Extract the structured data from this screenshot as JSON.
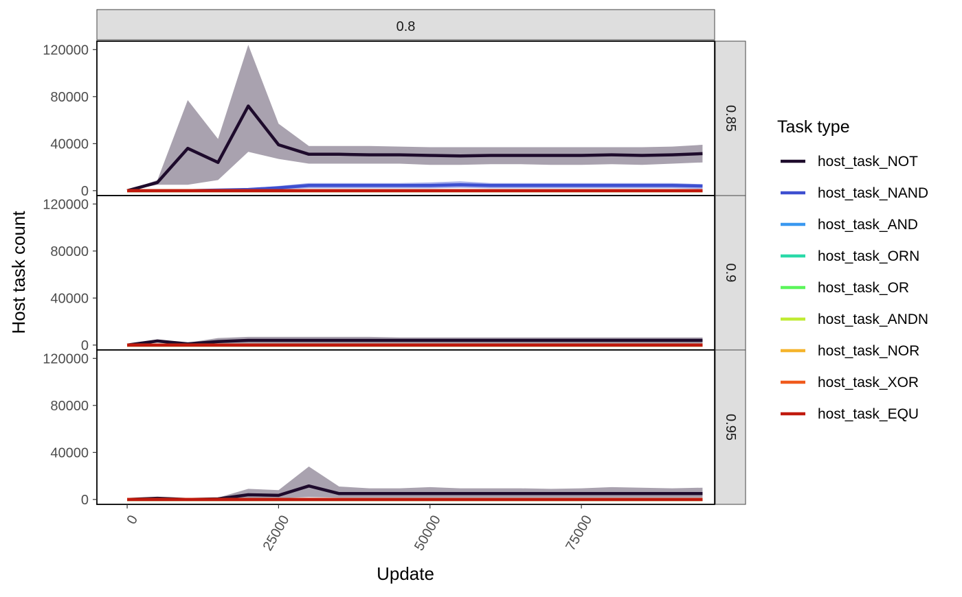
{
  "chart_data": {
    "type": "line",
    "title": "",
    "xlabel": "Update",
    "ylabel": "Host task count",
    "column_strip": "0.8",
    "xlim": [
      -5000,
      97000
    ],
    "ylim": [
      -3000,
      126000
    ],
    "x_ticks": [
      0,
      25000,
      50000,
      75000
    ],
    "x_tick_labels": [
      "0",
      "25000",
      "50000",
      "75000"
    ],
    "y_ticks": [
      0,
      40000,
      80000,
      120000
    ],
    "y_tick_labels": [
      "0",
      "40000",
      "80000",
      "120000"
    ],
    "legend": {
      "title": "Task type",
      "position": "right",
      "items": [
        {
          "name": "host_task_NOT",
          "color": "#1e0b2c"
        },
        {
          "name": "host_task_NAND",
          "color": "#3d4fd0"
        },
        {
          "name": "host_task_AND",
          "color": "#3a98f0"
        },
        {
          "name": "host_task_ORN",
          "color": "#2ad9a8"
        },
        {
          "name": "host_task_OR",
          "color": "#5cf55b"
        },
        {
          "name": "host_task_ANDN",
          "color": "#c0ec34"
        },
        {
          "name": "host_task_NOR",
          "color": "#f5b42c"
        },
        {
          "name": "host_task_XOR",
          "color": "#f05a1c"
        },
        {
          "name": "host_task_EQU",
          "color": "#c01a0e"
        }
      ]
    },
    "x": [
      0,
      5000,
      10000,
      15000,
      20000,
      25000,
      30000,
      35000,
      40000,
      45000,
      50000,
      55000,
      60000,
      65000,
      70000,
      75000,
      80000,
      85000,
      90000,
      95000
    ],
    "panels": [
      {
        "strip": "0.85",
        "series": [
          {
            "name": "host_task_NOT",
            "values": [
              0,
              7000,
              36000,
              24000,
              72000,
              39000,
              31000,
              31000,
              30500,
              30500,
              30000,
              29500,
              30000,
              30000,
              30000,
              30000,
              30500,
              30000,
              30500,
              31500
            ],
            "lower": [
              0,
              5000,
              5000,
              9000,
              33000,
              27000,
              23000,
              23000,
              23000,
              23000,
              22000,
              22000,
              22500,
              22500,
              22000,
              22000,
              22500,
              22000,
              23000,
              24000
            ],
            "upper": [
              0,
              9000,
              77000,
              44000,
              124000,
              57000,
              38000,
              38000,
              38000,
              37500,
              37000,
              37000,
              37000,
              37000,
              37000,
              37000,
              37000,
              37000,
              37500,
              39000
            ]
          },
          {
            "name": "host_task_NAND",
            "values": [
              0,
              0,
              0,
              500,
              1000,
              2500,
              4500,
              4500,
              4500,
              4500,
              4500,
              5000,
              4500,
              4500,
              4500,
              4500,
              4500,
              4500,
              4500,
              4000
            ],
            "lower": [
              0,
              0,
              0,
              0,
              0,
              1000,
              2000,
              2000,
              2000,
              2000,
              2000,
              2500,
              2000,
              2000,
              2000,
              2000,
              2000,
              2000,
              2000,
              1500
            ],
            "upper": [
              0,
              0,
              500,
              1000,
              2000,
              4000,
              6500,
              6500,
              6500,
              6500,
              7000,
              8000,
              6500,
              6500,
              6500,
              6500,
              6500,
              6500,
              6500,
              5500
            ]
          },
          {
            "name": "host_task_AND",
            "values": [
              0,
              0,
              0,
              0,
              0,
              0,
              0,
              0,
              0,
              0,
              0,
              0,
              0,
              0,
              0,
              0,
              0,
              0,
              0,
              0
            ]
          },
          {
            "name": "host_task_ORN",
            "values": [
              0,
              0,
              0,
              0,
              0,
              0,
              0,
              0,
              0,
              0,
              0,
              0,
              0,
              0,
              0,
              0,
              0,
              0,
              0,
              0
            ]
          },
          {
            "name": "host_task_OR",
            "values": [
              0,
              0,
              0,
              0,
              0,
              0,
              0,
              0,
              0,
              0,
              0,
              0,
              0,
              0,
              0,
              0,
              0,
              0,
              0,
              0
            ]
          },
          {
            "name": "host_task_ANDN",
            "values": [
              0,
              0,
              0,
              0,
              0,
              0,
              0,
              0,
              0,
              0,
              0,
              0,
              0,
              0,
              0,
              0,
              0,
              0,
              0,
              0
            ]
          },
          {
            "name": "host_task_NOR",
            "values": [
              0,
              0,
              0,
              0,
              0,
              0,
              0,
              0,
              0,
              0,
              0,
              0,
              0,
              0,
              0,
              0,
              0,
              0,
              0,
              0
            ]
          },
          {
            "name": "host_task_XOR",
            "values": [
              0,
              0,
              0,
              0,
              0,
              0,
              0,
              0,
              0,
              0,
              0,
              0,
              0,
              0,
              0,
              0,
              0,
              0,
              0,
              0
            ]
          },
          {
            "name": "host_task_EQU",
            "values": [
              0,
              0,
              0,
              0,
              0,
              0,
              0,
              0,
              0,
              0,
              0,
              0,
              0,
              0,
              0,
              0,
              0,
              0,
              0,
              0
            ]
          }
        ]
      },
      {
        "strip": "0.9",
        "series": [
          {
            "name": "host_task_NOT",
            "values": [
              0,
              3500,
              1000,
              3000,
              4000,
              4000,
              4000,
              4000,
              4000,
              4000,
              4000,
              4000,
              4000,
              4000,
              4000,
              4000,
              4000,
              4000,
              4000,
              4000
            ],
            "lower": [
              0,
              2000,
              0,
              500,
              1000,
              1000,
              1000,
              1000,
              1000,
              1000,
              1000,
              1000,
              1000,
              1000,
              1000,
              1000,
              1000,
              1000,
              1000,
              1000
            ],
            "upper": [
              0,
              4500,
              2000,
              6000,
              7000,
              7000,
              7000,
              7000,
              7000,
              6500,
              6500,
              6500,
              6500,
              6500,
              6500,
              6500,
              6500,
              6500,
              6500,
              6500
            ]
          },
          {
            "name": "host_task_NAND",
            "values": [
              0,
              0,
              0,
              0,
              0,
              0,
              0,
              0,
              0,
              0,
              0,
              0,
              0,
              0,
              0,
              0,
              0,
              0,
              0,
              0
            ]
          },
          {
            "name": "host_task_AND",
            "values": [
              0,
              0,
              0,
              0,
              0,
              0,
              0,
              0,
              0,
              0,
              0,
              0,
              0,
              0,
              0,
              0,
              0,
              0,
              0,
              0
            ]
          },
          {
            "name": "host_task_ORN",
            "values": [
              0,
              0,
              0,
              0,
              0,
              0,
              0,
              0,
              0,
              0,
              0,
              0,
              0,
              0,
              0,
              0,
              0,
              0,
              0,
              0
            ]
          },
          {
            "name": "host_task_OR",
            "values": [
              0,
              0,
              0,
              0,
              0,
              0,
              0,
              0,
              0,
              0,
              0,
              0,
              0,
              0,
              0,
              0,
              0,
              0,
              0,
              0
            ]
          },
          {
            "name": "host_task_ANDN",
            "values": [
              0,
              0,
              0,
              0,
              0,
              0,
              0,
              0,
              0,
              0,
              0,
              0,
              0,
              0,
              0,
              0,
              0,
              0,
              0,
              0
            ]
          },
          {
            "name": "host_task_NOR",
            "values": [
              0,
              0,
              0,
              0,
              0,
              0,
              0,
              0,
              0,
              0,
              0,
              0,
              0,
              0,
              0,
              0,
              0,
              0,
              0,
              0
            ]
          },
          {
            "name": "host_task_XOR",
            "values": [
              0,
              0,
              0,
              0,
              0,
              0,
              0,
              0,
              0,
              0,
              0,
              0,
              0,
              0,
              0,
              0,
              0,
              0,
              0,
              0
            ]
          },
          {
            "name": "host_task_EQU",
            "values": [
              0,
              0,
              0,
              0,
              0,
              0,
              0,
              0,
              0,
              0,
              0,
              0,
              0,
              0,
              0,
              0,
              0,
              0,
              0,
              0
            ]
          }
        ]
      },
      {
        "strip": "0.95",
        "series": [
          {
            "name": "host_task_NOT",
            "values": [
              0,
              1000,
              0,
              500,
              4000,
              3500,
              11500,
              5000,
              5000,
              5000,
              5000,
              5000,
              5000,
              5000,
              5000,
              5000,
              5000,
              5000,
              5000,
              5000
            ],
            "lower": [
              0,
              0,
              0,
              0,
              1000,
              1000,
              2000,
              1500,
              1500,
              1500,
              1500,
              1500,
              1500,
              1500,
              1500,
              1500,
              1500,
              1500,
              1500,
              1500
            ],
            "upper": [
              0,
              1500,
              500,
              1500,
              9000,
              8000,
              28000,
              11000,
              9500,
              9500,
              10500,
              9500,
              9500,
              9500,
              9000,
              9500,
              10500,
              10000,
              9500,
              10000
            ]
          },
          {
            "name": "host_task_NAND",
            "values": [
              0,
              0,
              0,
              0,
              0,
              0,
              0,
              0,
              0,
              0,
              0,
              0,
              0,
              0,
              0,
              0,
              0,
              0,
              0,
              0
            ]
          },
          {
            "name": "host_task_AND",
            "values": [
              0,
              0,
              0,
              0,
              0,
              0,
              0,
              0,
              0,
              0,
              0,
              0,
              0,
              0,
              0,
              0,
              0,
              0,
              0,
              0
            ]
          },
          {
            "name": "host_task_ORN",
            "values": [
              0,
              0,
              0,
              0,
              0,
              0,
              0,
              0,
              0,
              0,
              0,
              0,
              0,
              0,
              0,
              0,
              0,
              0,
              0,
              0
            ]
          },
          {
            "name": "host_task_OR",
            "values": [
              0,
              0,
              0,
              0,
              0,
              0,
              0,
              0,
              0,
              0,
              0,
              0,
              0,
              0,
              0,
              0,
              0,
              0,
              0,
              0
            ]
          },
          {
            "name": "host_task_ANDN",
            "values": [
              0,
              0,
              0,
              0,
              0,
              0,
              0,
              0,
              0,
              0,
              0,
              0,
              0,
              0,
              0,
              0,
              0,
              0,
              0,
              0
            ]
          },
          {
            "name": "host_task_NOR",
            "values": [
              0,
              0,
              0,
              0,
              0,
              0,
              0,
              0,
              0,
              0,
              0,
              0,
              0,
              0,
              0,
              0,
              0,
              0,
              0,
              0
            ]
          },
          {
            "name": "host_task_XOR",
            "values": [
              0,
              0,
              0,
              0,
              0,
              0,
              0,
              0,
              0,
              0,
              0,
              0,
              0,
              0,
              0,
              0,
              0,
              0,
              0,
              0
            ]
          },
          {
            "name": "host_task_EQU",
            "values": [
              0,
              0,
              0,
              0,
              0,
              0,
              0,
              0,
              0,
              0,
              0,
              0,
              0,
              0,
              0,
              0,
              0,
              0,
              0,
              0
            ]
          }
        ]
      }
    ]
  }
}
